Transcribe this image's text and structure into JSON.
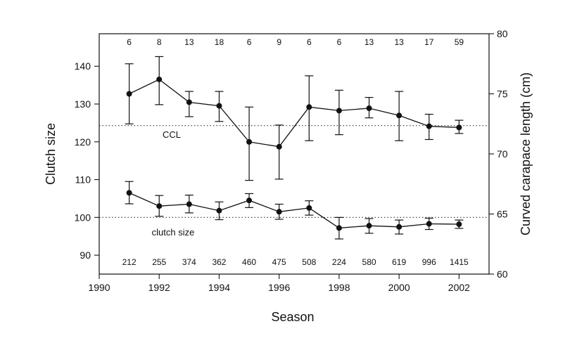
{
  "chart_data": {
    "type": "line",
    "xlabel": "Season",
    "ylabel_left": "Clutch size",
    "ylabel_right": "Curved carapace length (cm)",
    "xlim": [
      1990,
      2003
    ],
    "ylim_left": [
      85,
      148.6
    ],
    "ylim_right": [
      60,
      80
    ],
    "x_ticks": [
      "1990",
      "1992",
      "1994",
      "1996",
      "1998",
      "2000",
      "2002"
    ],
    "y_left_ticks": [
      "90",
      "100",
      "110",
      "120",
      "130",
      "140"
    ],
    "y_right_ticks": [
      "60",
      "65",
      "70",
      "75",
      "80"
    ],
    "grid": false,
    "x": [
      1991,
      1992,
      1993,
      1994,
      1995,
      1996,
      1997,
      1998,
      1999,
      2000,
      2001,
      2002
    ],
    "series": [
      {
        "name": "CCL",
        "axis": "right",
        "values": [
          75.0,
          76.2,
          74.3,
          74.0,
          71.0,
          70.6,
          73.9,
          73.6,
          73.8,
          73.2,
          72.3,
          72.2
        ],
        "err_low": [
          72.5,
          74.1,
          73.1,
          72.7,
          67.8,
          67.9,
          71.1,
          71.6,
          73.0,
          71.1,
          71.2,
          71.7
        ],
        "err_high": [
          77.5,
          78.1,
          75.2,
          75.2,
          73.9,
          72.4,
          76.5,
          75.3,
          74.7,
          75.2,
          73.3,
          72.8
        ],
        "counts": [
          "6",
          "8",
          "13",
          "18",
          "6",
          "9",
          "6",
          "6",
          "13",
          "13",
          "17",
          "59"
        ]
      },
      {
        "name": "clutch size",
        "axis": "left",
        "values": [
          106.5,
          103.0,
          103.5,
          101.8,
          104.5,
          101.5,
          102.5,
          97.2,
          97.8,
          97.5,
          98.3,
          98.2
        ],
        "err_low": [
          103.6,
          100.3,
          101.2,
          99.4,
          102.6,
          99.5,
          100.6,
          94.3,
          95.8,
          95.6,
          96.8,
          97.1
        ],
        "err_high": [
          109.5,
          105.8,
          105.9,
          104.1,
          106.3,
          103.5,
          104.4,
          100.0,
          99.7,
          99.3,
          99.8,
          99.3
        ],
        "counts": [
          "212",
          "255",
          "374",
          "362",
          "460",
          "475",
          "508",
          "224",
          "580",
          "619",
          "996",
          "1415"
        ]
      }
    ],
    "reference_lines": [
      {
        "axis": "left",
        "value": 100
      },
      {
        "axis": "left",
        "value": 124.3
      }
    ]
  }
}
